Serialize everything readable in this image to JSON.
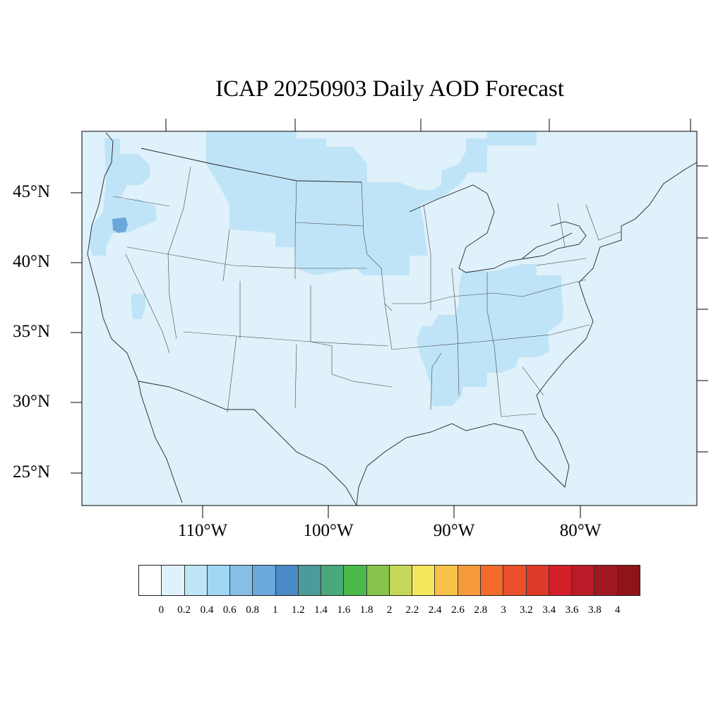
{
  "title": "ICAP 20250903 Daily AOD Forecast",
  "map": {
    "region": "Continental United States",
    "latitude_labels": [
      "45°N",
      "40°N",
      "35°N",
      "30°N",
      "25°N"
    ],
    "longitude_labels": [
      "110°W",
      "100°W",
      "90°W",
      "80°W"
    ],
    "background_value_color": "#dff1fa",
    "highlight_colors": [
      "#bde3f7",
      "#6aa7da"
    ]
  },
  "colorbar": {
    "labels": [
      "0",
      "0.2",
      "0.4",
      "0.6",
      "0.8",
      "1",
      "1.2",
      "1.4",
      "1.6",
      "1.8",
      "2",
      "2.2",
      "2.4",
      "2.6",
      "2.8",
      "3",
      "3.2",
      "3.4",
      "3.6",
      "3.8",
      "4"
    ],
    "colors": [
      "#ffffff",
      "#dff2fb",
      "#bfe5f7",
      "#a0d7f2",
      "#85bfe5",
      "#6aa7da",
      "#4a8ac8",
      "#4b9b9a",
      "#4aa87a",
      "#4db84a",
      "#86c44c",
      "#c5d75a",
      "#f6e65e",
      "#f7c04a",
      "#f59a3b",
      "#f26b2d",
      "#e84f2a",
      "#df3a28",
      "#d21f2a",
      "#b91c26",
      "#a01822",
      "#8d1418"
    ]
  }
}
